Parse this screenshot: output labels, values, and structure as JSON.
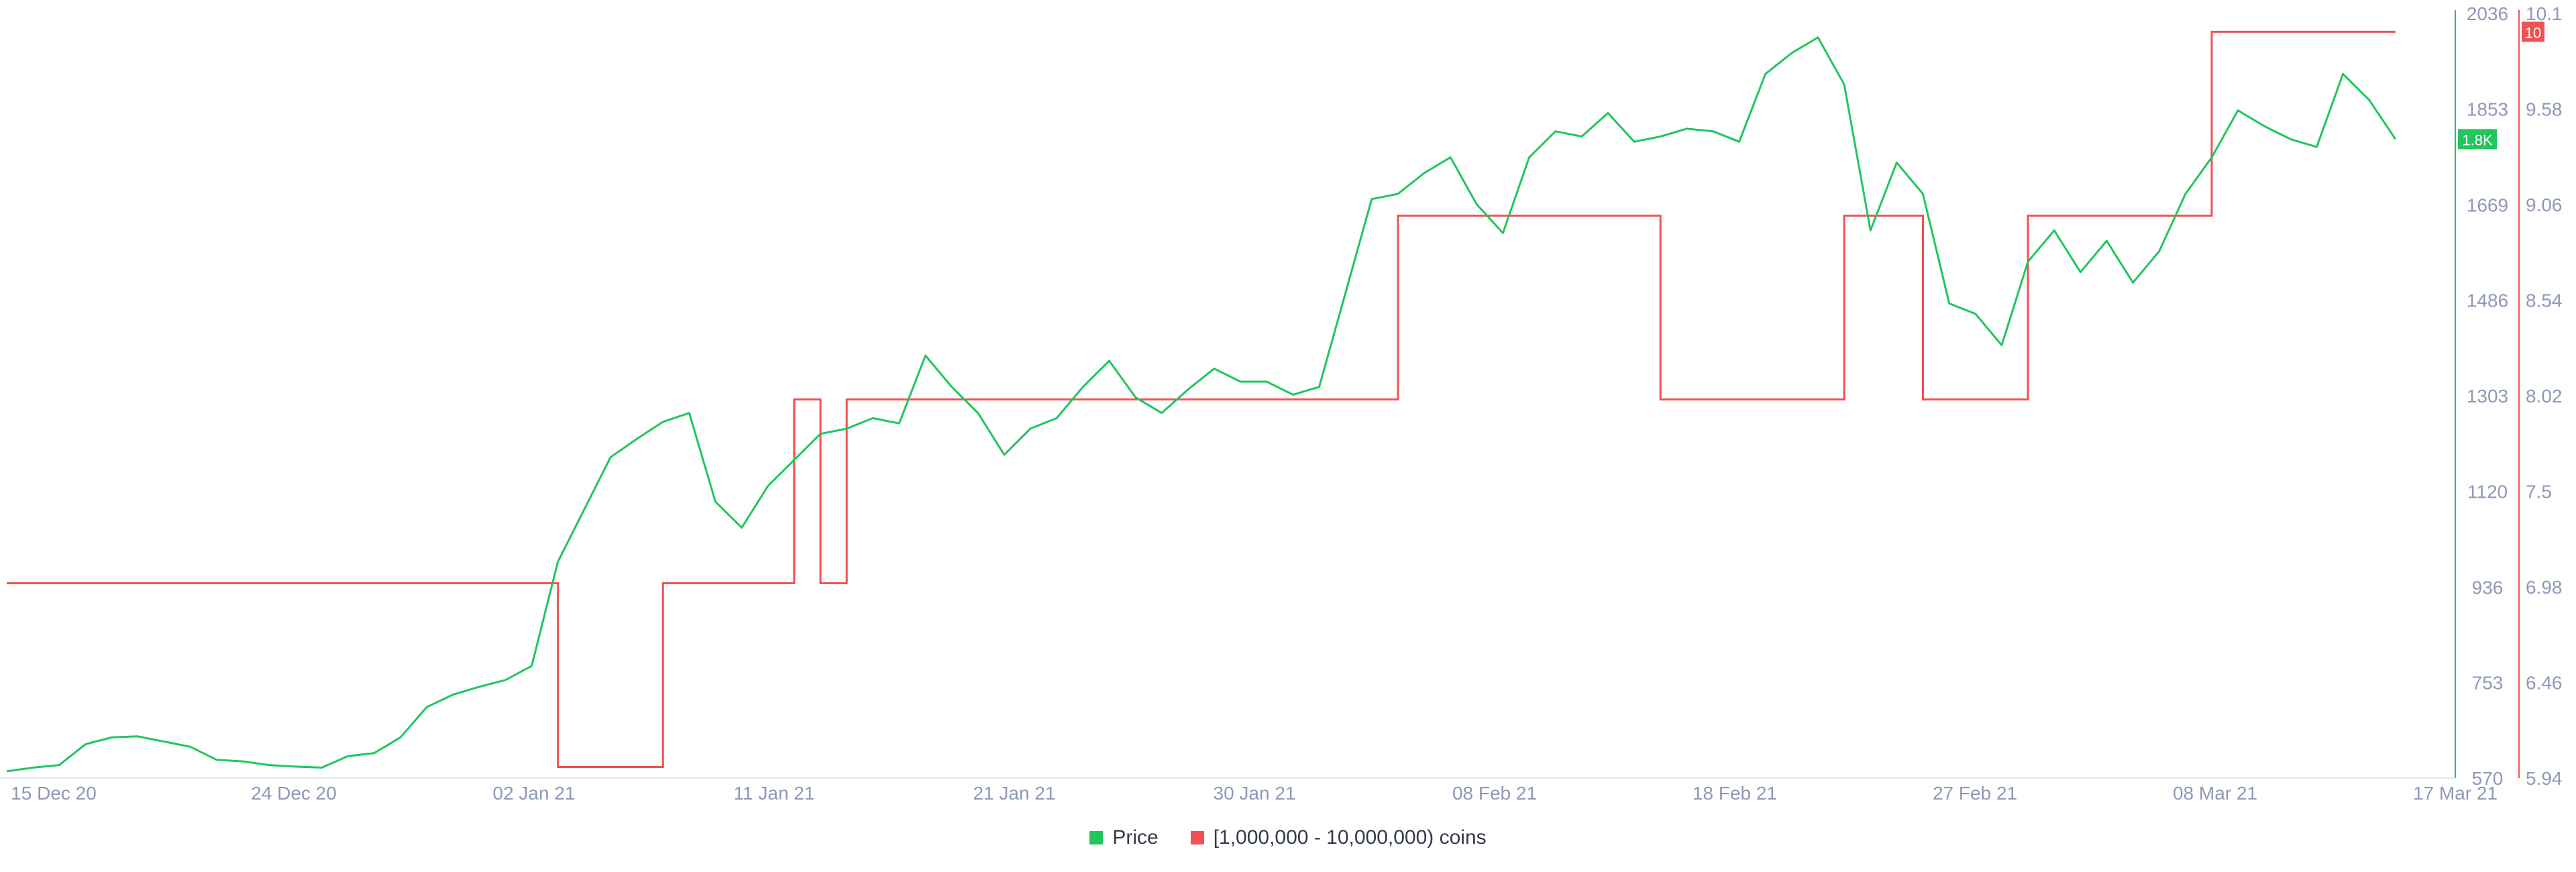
{
  "chart_data": {
    "type": "line",
    "title": "",
    "x_tick_labels": [
      "15 Dec 20",
      "24 Dec 20",
      "02 Jan 21",
      "11 Jan 21",
      "21 Jan 21",
      "30 Jan 21",
      "08 Feb 21",
      "18 Feb 21",
      "27 Feb 21",
      "08 Mar 21",
      "17 Mar 21"
    ],
    "x_range": [
      "2020-12-15",
      "2021-03-17"
    ],
    "y_left": {
      "label": "",
      "ticks": [
        570,
        753,
        936,
        1120,
        1303,
        1486,
        1669,
        1853,
        2036
      ],
      "range": [
        570,
        2036
      ]
    },
    "y_right": {
      "label": "",
      "ticks": [
        "5.94",
        "6.46",
        "6.98",
        "7.5",
        "8.02",
        "8.54",
        "9.06",
        "9.58",
        "10.1"
      ],
      "range": [
        5.94,
        10.1
      ]
    },
    "legend_position": "bottom-center",
    "grid": false,
    "series": [
      {
        "name": "Price",
        "axis": "left",
        "color": "#22c55e",
        "current_value_label": "1.8K",
        "points": [
          [
            "2020-12-15",
            583
          ],
          [
            "2020-12-16",
            590
          ],
          [
            "2020-12-17",
            595
          ],
          [
            "2020-12-18",
            635
          ],
          [
            "2020-12-19",
            648
          ],
          [
            "2020-12-20",
            650
          ],
          [
            "2020-12-21",
            640
          ],
          [
            "2020-12-22",
            630
          ],
          [
            "2020-12-23",
            605
          ],
          [
            "2020-12-24",
            602
          ],
          [
            "2020-12-25",
            595
          ],
          [
            "2020-12-26",
            592
          ],
          [
            "2020-12-27",
            590
          ],
          [
            "2020-12-28",
            612
          ],
          [
            "2020-12-29",
            618
          ],
          [
            "2020-12-30",
            648
          ],
          [
            "2020-12-31",
            706
          ],
          [
            "2021-01-01",
            730
          ],
          [
            "2021-01-02",
            745
          ],
          [
            "2021-01-03",
            758
          ],
          [
            "2021-01-04",
            785
          ],
          [
            "2021-01-05",
            985
          ],
          [
            "2021-01-06",
            1085
          ],
          [
            "2021-01-07",
            1185
          ],
          [
            "2021-01-08",
            1220
          ],
          [
            "2021-01-09",
            1253
          ],
          [
            "2021-01-10",
            1270
          ],
          [
            "2021-01-11",
            1100
          ],
          [
            "2021-01-12",
            1050
          ],
          [
            "2021-01-13",
            1130
          ],
          [
            "2021-01-14",
            1180
          ],
          [
            "2021-01-15",
            1230
          ],
          [
            "2021-01-16",
            1240
          ],
          [
            "2021-01-17",
            1260
          ],
          [
            "2021-01-18",
            1250
          ],
          [
            "2021-01-19",
            1380
          ],
          [
            "2021-01-20",
            1320
          ],
          [
            "2021-01-21",
            1270
          ],
          [
            "2021-01-22",
            1190
          ],
          [
            "2021-01-23",
            1240
          ],
          [
            "2021-01-24",
            1260
          ],
          [
            "2021-01-25",
            1320
          ],
          [
            "2021-01-26",
            1370
          ],
          [
            "2021-01-27",
            1300
          ],
          [
            "2021-01-28",
            1270
          ],
          [
            "2021-01-29",
            1315
          ],
          [
            "2021-01-30",
            1355
          ],
          [
            "2021-01-31",
            1330
          ],
          [
            "2021-02-01",
            1330
          ],
          [
            "2021-02-02",
            1305
          ],
          [
            "2021-02-03",
            1320
          ],
          [
            "2021-02-04",
            1500
          ],
          [
            "2021-02-05",
            1680
          ],
          [
            "2021-02-06",
            1690
          ],
          [
            "2021-02-07",
            1730
          ],
          [
            "2021-02-08",
            1760
          ],
          [
            "2021-02-09",
            1670
          ],
          [
            "2021-02-10",
            1615
          ],
          [
            "2021-02-11",
            1760
          ],
          [
            "2021-02-12",
            1810
          ],
          [
            "2021-02-13",
            1800
          ],
          [
            "2021-02-14",
            1845
          ],
          [
            "2021-02-15",
            1790
          ],
          [
            "2021-02-16",
            1800
          ],
          [
            "2021-02-17",
            1815
          ],
          [
            "2021-02-18",
            1810
          ],
          [
            "2021-02-19",
            1790
          ],
          [
            "2021-02-20",
            1920
          ],
          [
            "2021-02-21",
            1960
          ],
          [
            "2021-02-22",
            1990
          ],
          [
            "2021-02-23",
            1900
          ],
          [
            "2021-02-24",
            1620
          ],
          [
            "2021-02-25",
            1750
          ],
          [
            "2021-02-26",
            1690
          ],
          [
            "2021-02-27",
            1480
          ],
          [
            "2021-02-28",
            1460
          ],
          [
            "2021-03-01",
            1400
          ],
          [
            "2021-03-02",
            1560
          ],
          [
            "2021-03-03",
            1620
          ],
          [
            "2021-03-04",
            1540
          ],
          [
            "2021-03-05",
            1600
          ],
          [
            "2021-03-06",
            1520
          ],
          [
            "2021-03-07",
            1580
          ],
          [
            "2021-03-08",
            1690
          ],
          [
            "2021-03-09",
            1760
          ],
          [
            "2021-03-10",
            1850
          ],
          [
            "2021-03-11",
            1820
          ],
          [
            "2021-03-12",
            1795
          ],
          [
            "2021-03-13",
            1780
          ],
          [
            "2021-03-14",
            1920
          ],
          [
            "2021-03-15",
            1870
          ],
          [
            "2021-03-16",
            1795
          ]
        ]
      },
      {
        "name": "[1,000,000 - 10,000,000) coins",
        "axis": "right",
        "color": "#f05252",
        "current_value_label": "10",
        "steps": [
          [
            "2020-12-15",
            7.0
          ],
          [
            "2021-01-05",
            6.0
          ],
          [
            "2021-01-09",
            7.0
          ],
          [
            "2021-01-14",
            8.0
          ],
          [
            "2021-01-15",
            7.0
          ],
          [
            "2021-01-16",
            8.0
          ],
          [
            "2021-02-06",
            9.0
          ],
          [
            "2021-02-16",
            8.0
          ],
          [
            "2021-02-23",
            9.0
          ],
          [
            "2021-02-26",
            8.0
          ],
          [
            "2021-03-02",
            9.0
          ],
          [
            "2021-03-09",
            10.0
          ],
          [
            "2021-03-16",
            10.0
          ]
        ]
      }
    ]
  }
}
